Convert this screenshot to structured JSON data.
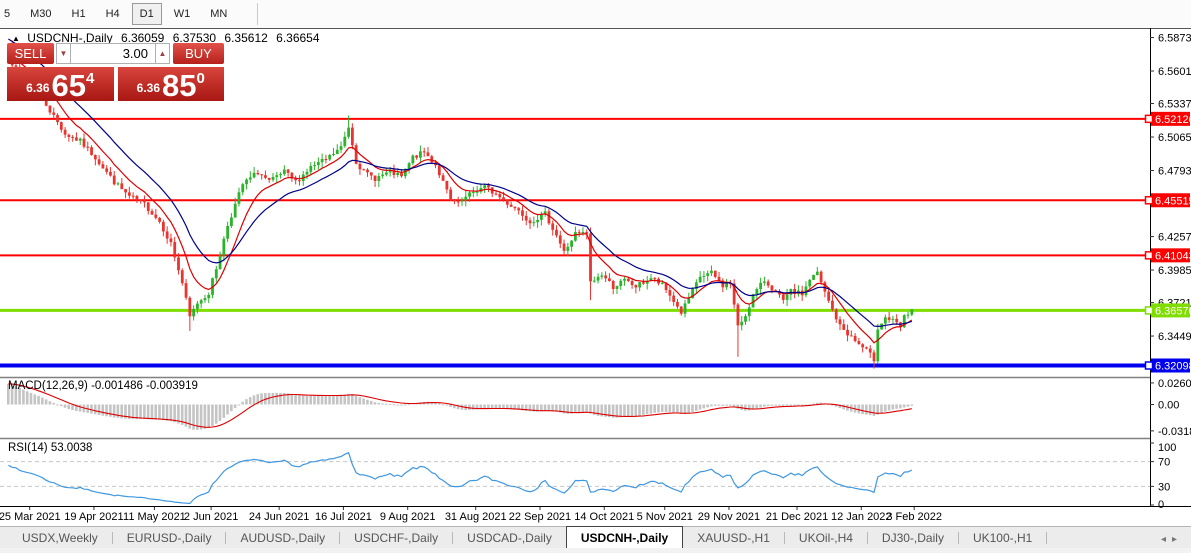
{
  "toolbar": {
    "items": [
      "5",
      "M30",
      "H1",
      "H4",
      "D1",
      "W1",
      "MN"
    ],
    "active": "D1"
  },
  "chart_header": {
    "title": "USDCNH-,Daily",
    "open": "6.36059",
    "high": "6.37530",
    "low": "6.35612",
    "close": "6.36654"
  },
  "trade_panel": {
    "sell_label": "SELL",
    "buy_label": "BUY",
    "volume": "3.00",
    "sell_price_prefix": "6.36",
    "sell_price_big": "65",
    "sell_price_sup": "4",
    "buy_price_prefix": "6.36",
    "buy_price_big": "85",
    "buy_price_sup": "0"
  },
  "chart_data": {
    "type": "candlestick",
    "symbol": "USDCNH-",
    "timeframe": "Daily",
    "quote": {
      "open": 6.36059,
      "high": 6.3753,
      "low": 6.35612,
      "close": 6.36654
    },
    "candle_count": 240,
    "bull_color": "#2bb32b",
    "bear_color": "#e9352f",
    "y_axis_ticks": [
      6.5873,
      6.5601,
      6.5337,
      6.5065,
      6.4793,
      6.4257,
      6.3985,
      6.3721,
      6.3449
    ],
    "horizontal_lines": [
      {
        "label": "6.52126",
        "price": 6.52126,
        "color": "#ff0000",
        "width": 2
      },
      {
        "label": "6.45515",
        "price": 6.45515,
        "color": "#ff0000",
        "width": 2
      },
      {
        "label": "6.41043",
        "price": 6.41043,
        "color": "#ff0000",
        "width": 2
      },
      {
        "label": "6.36570",
        "price": 6.3657,
        "color": "#7fdd00",
        "width": 3
      },
      {
        "label": "6.32098",
        "price": 6.32098,
        "color": "#0000ee",
        "width": 4
      }
    ],
    "moving_averages": [
      {
        "name": "fast",
        "color": "#dd0000"
      },
      {
        "name": "slow",
        "color": "#00008b"
      }
    ],
    "close_path": [
      [
        0,
        6.572
      ],
      [
        3,
        6.556
      ],
      [
        7,
        6.548
      ],
      [
        11,
        6.528
      ],
      [
        15,
        6.509
      ],
      [
        19,
        6.503
      ],
      [
        23,
        6.49
      ],
      [
        28,
        6.47
      ],
      [
        32,
        6.458
      ],
      [
        36,
        6.452
      ],
      [
        40,
        6.438
      ],
      [
        43,
        6.42
      ],
      [
        46,
        6.388
      ],
      [
        48,
        6.36
      ],
      [
        50,
        6.372
      ],
      [
        53,
        6.38
      ],
      [
        55,
        6.4
      ],
      [
        58,
        6.435
      ],
      [
        62,
        6.468
      ],
      [
        66,
        6.478
      ],
      [
        69,
        6.47
      ],
      [
        73,
        6.478
      ],
      [
        76,
        6.47
      ],
      [
        80,
        6.482
      ],
      [
        84,
        6.488
      ],
      [
        88,
        6.498
      ],
      [
        90,
        6.515
      ],
      [
        92,
        6.487
      ],
      [
        94,
        6.478
      ],
      [
        97,
        6.473
      ],
      [
        101,
        6.478
      ],
      [
        104,
        6.474
      ],
      [
        107,
        6.49
      ],
      [
        110,
        6.494
      ],
      [
        113,
        6.484
      ],
      [
        117,
        6.455
      ],
      [
        119,
        6.452
      ],
      [
        123,
        6.462
      ],
      [
        126,
        6.466
      ],
      [
        129,
        6.46
      ],
      [
        132,
        6.453
      ],
      [
        135,
        6.447
      ],
      [
        138,
        6.438
      ],
      [
        142,
        6.444
      ],
      [
        145,
        6.427
      ],
      [
        147,
        6.413
      ],
      [
        150,
        6.428
      ],
      [
        153,
        6.428
      ],
      [
        154,
        6.388
      ],
      [
        157,
        6.395
      ],
      [
        160,
        6.385
      ],
      [
        163,
        6.39
      ],
      [
        166,
        6.385
      ],
      [
        170,
        6.392
      ],
      [
        173,
        6.386
      ],
      [
        175,
        6.378
      ],
      [
        178,
        6.364
      ],
      [
        181,
        6.381
      ],
      [
        183,
        6.393
      ],
      [
        186,
        6.396
      ],
      [
        189,
        6.386
      ],
      [
        191,
        6.388
      ],
      [
        193,
        6.352
      ],
      [
        195,
        6.362
      ],
      [
        197,
        6.378
      ],
      [
        200,
        6.39
      ],
      [
        202,
        6.384
      ],
      [
        205,
        6.373
      ],
      [
        207,
        6.381
      ],
      [
        210,
        6.379
      ],
      [
        212,
        6.391
      ],
      [
        214,
        6.396
      ],
      [
        216,
        6.38
      ],
      [
        218,
        6.366
      ],
      [
        220,
        6.353
      ],
      [
        222,
        6.347
      ],
      [
        225,
        6.338
      ],
      [
        227,
        6.333
      ],
      [
        229,
        6.326
      ],
      [
        230,
        6.352
      ],
      [
        232,
        6.36
      ],
      [
        234,
        6.357
      ],
      [
        236,
        6.352
      ],
      [
        237,
        6.36
      ],
      [
        239,
        6.3665
      ]
    ],
    "wick_events": [
      {
        "i": 1,
        "high": 6.585
      },
      {
        "i": 48,
        "low": 6.349
      },
      {
        "i": 90,
        "high": 6.524
      },
      {
        "i": 154,
        "low": 6.374
      },
      {
        "i": 193,
        "low": 6.328
      },
      {
        "i": 229,
        "low": 6.3185
      }
    ],
    "date_axis": [
      {
        "label": "25 Mar 2021",
        "i": 6
      },
      {
        "label": "19 Apr 2021",
        "i": 23
      },
      {
        "label": "11 May 2021",
        "i": 39
      },
      {
        "label": "2 Jun 2021",
        "i": 54
      },
      {
        "label": "24 Jun 2021",
        "i": 72
      },
      {
        "label": "16 Jul 2021",
        "i": 89
      },
      {
        "label": "9 Aug 2021",
        "i": 106
      },
      {
        "label": "31 Aug 2021",
        "i": 124
      },
      {
        "label": "22 Sep 2021",
        "i": 141
      },
      {
        "label": "14 Oct 2021",
        "i": 158
      },
      {
        "label": "5 Nov 2021",
        "i": 174
      },
      {
        "label": "29 Nov 2021",
        "i": 191
      },
      {
        "label": "21 Dec 2021",
        "i": 209
      },
      {
        "label": "12 Jan 2022",
        "i": 226
      },
      {
        "label": "3 Feb 2022",
        "i": 240
      }
    ]
  },
  "indicators": {
    "macd": {
      "label": "MACD(12,26,9) -0.001486 -0.003919",
      "main_value": -0.001486,
      "signal_value": -0.003919,
      "histogram_color": "#c4c4c4",
      "signal_color": "#dd0000",
      "axis_ticks": [
        {
          "label": "0.02607",
          "value": 0.02607
        },
        {
          "label": "0.00",
          "value": 0
        },
        {
          "label": "-0.031872",
          "value": -0.031872
        }
      ]
    },
    "rsi": {
      "label": "RSI(14) 53.0038",
      "value": 53.0038,
      "line_color": "#3f97e0",
      "level_color": "#c8c8c8",
      "levels": [
        70,
        30
      ],
      "axis_ticks": [
        {
          "label": "100",
          "value": 100
        },
        {
          "label": "70",
          "value": 70
        },
        {
          "label": "30",
          "value": 30
        },
        {
          "label": "0",
          "value": 0
        }
      ]
    }
  },
  "tabs": {
    "items": [
      {
        "label": "USDX,Weekly"
      },
      {
        "label": "EURUSD-,Daily"
      },
      {
        "label": "AUDUSD-,Daily"
      },
      {
        "label": "USDCHF-,Daily"
      },
      {
        "label": "USDCAD-,Daily"
      },
      {
        "label": "USDCNH-,Daily"
      },
      {
        "label": "XAUUSD-,H1"
      },
      {
        "label": "UKOil-,H4"
      },
      {
        "label": "DJ30-,Daily"
      },
      {
        "label": "UK100-,H1"
      }
    ],
    "active_index": 5,
    "scroll_left": "◂",
    "scroll_right": "▸"
  }
}
